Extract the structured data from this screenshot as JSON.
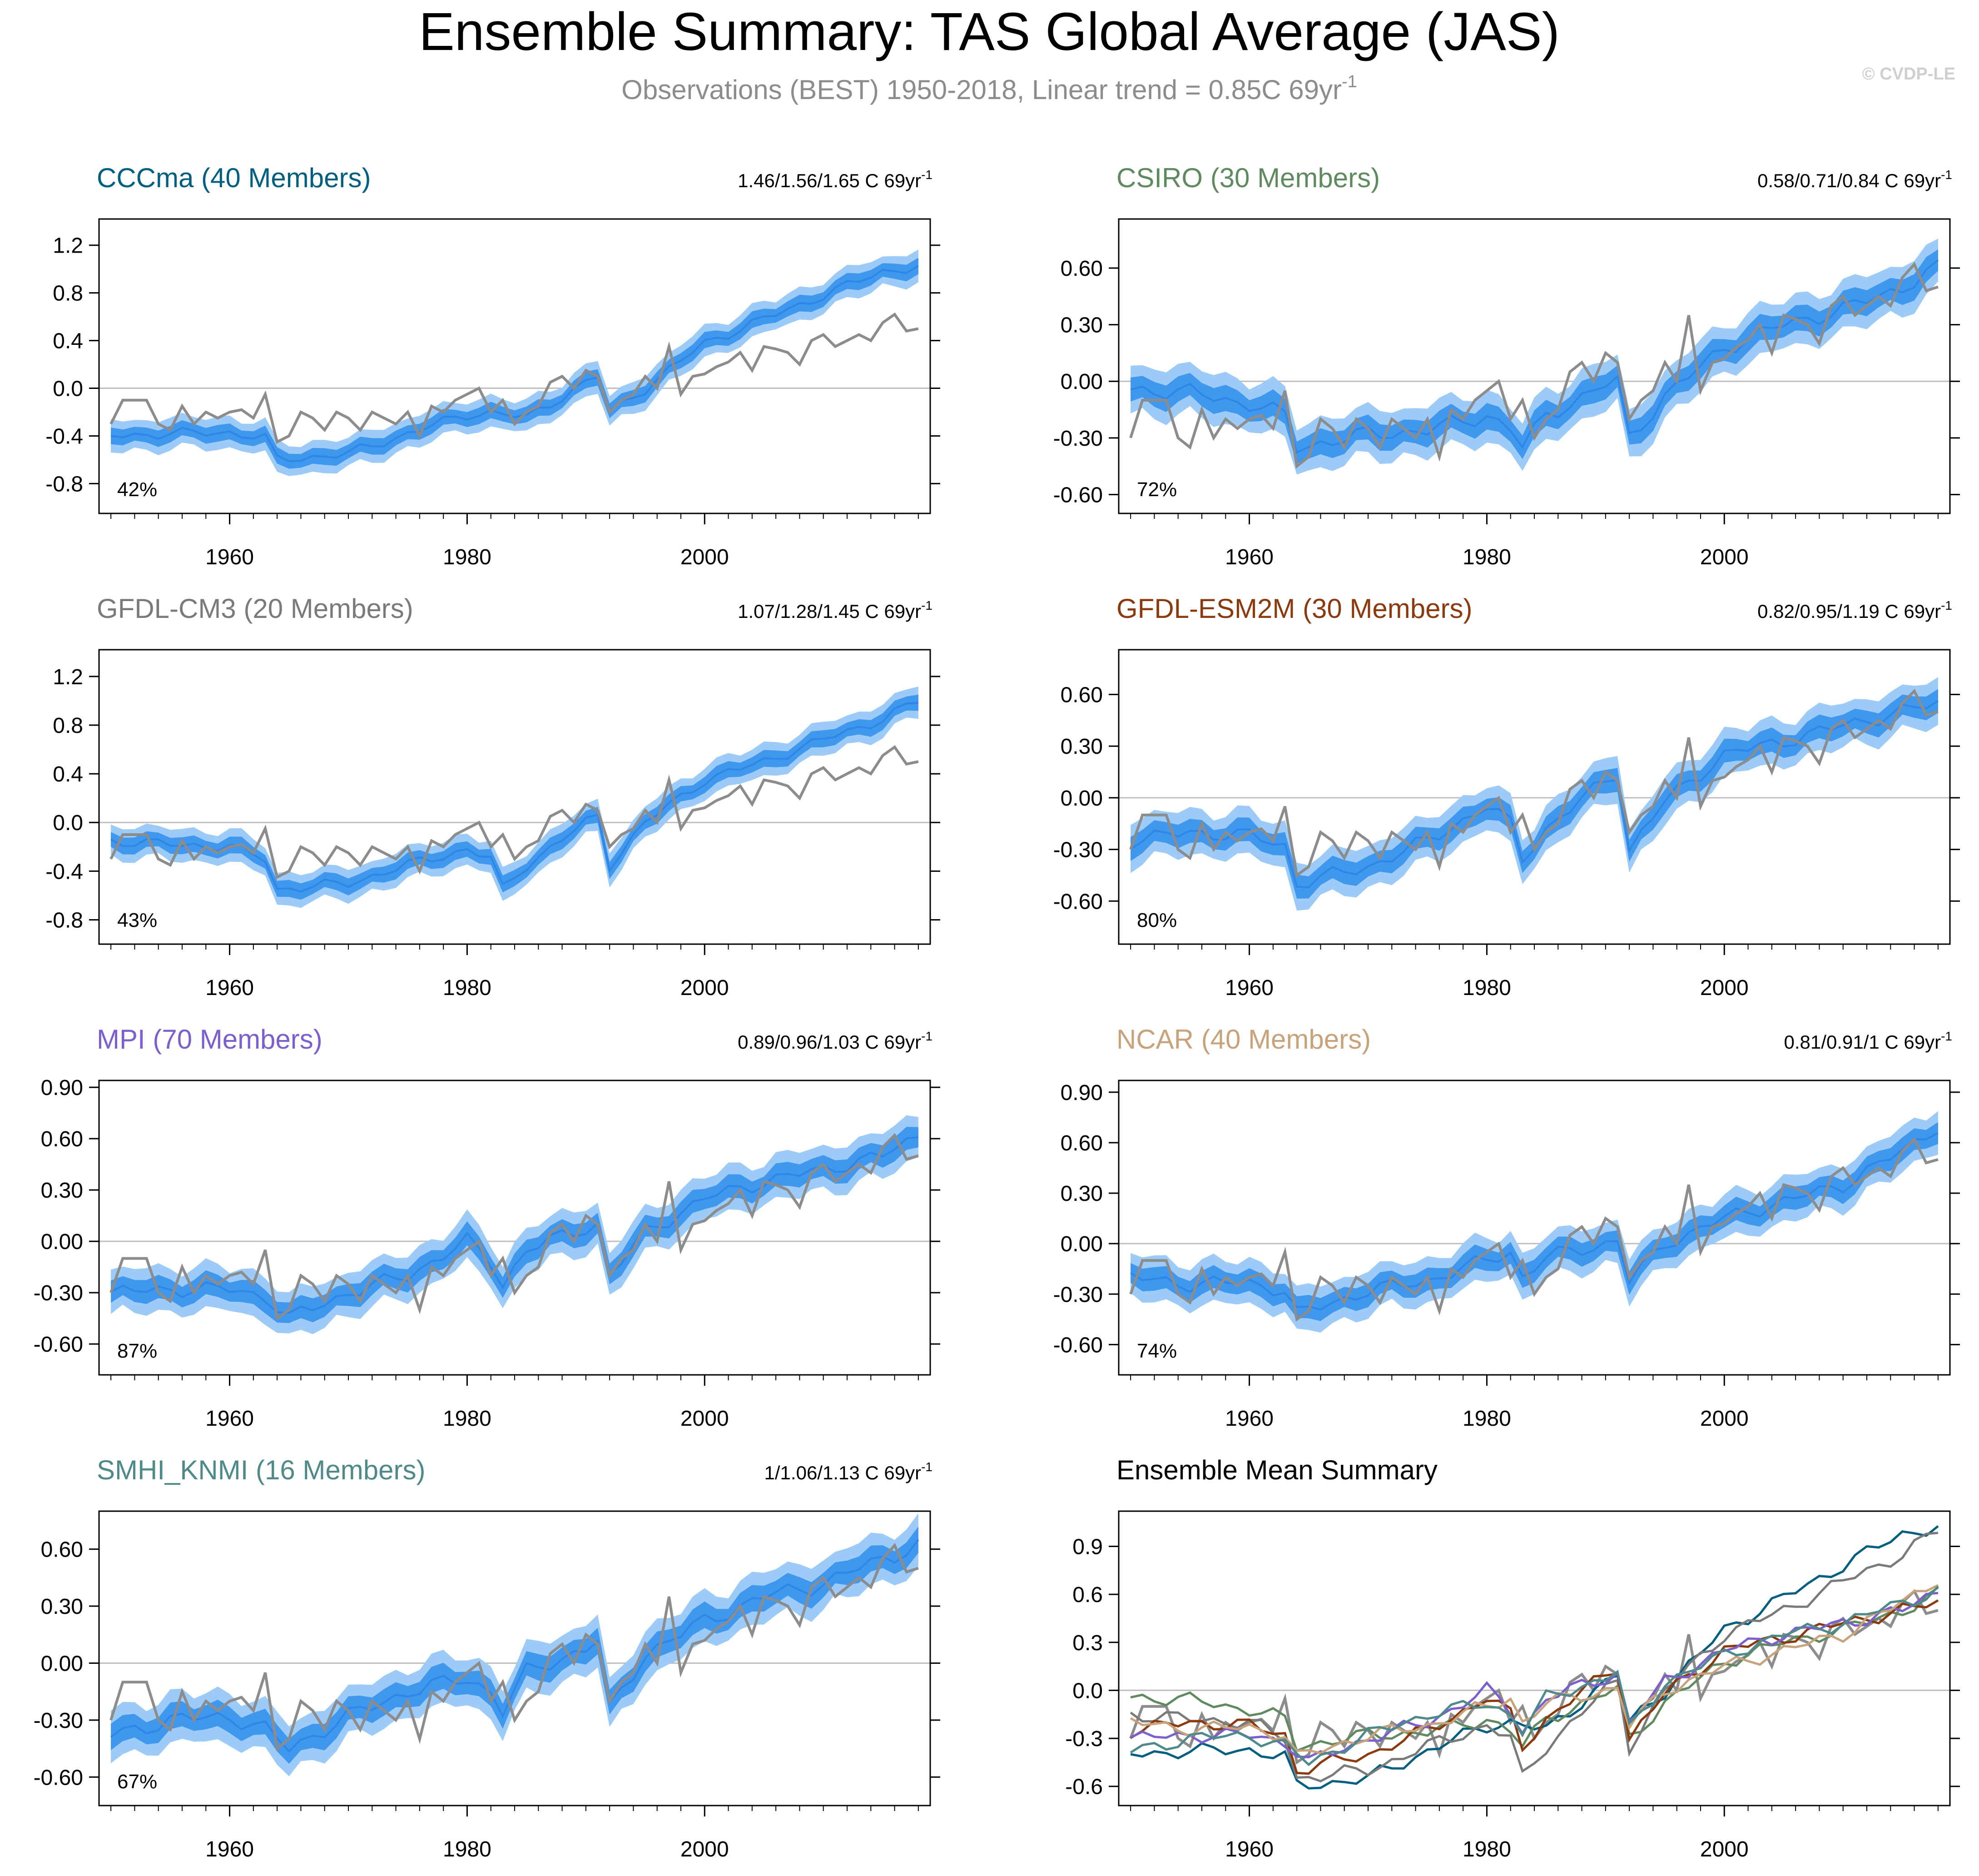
{
  "title": "Ensemble Summary: TAS Global Average (JAS)",
  "subtitle": "Observations (BEST) 1950-2018, Linear trend = 0.85C 69yr",
  "subtitle_sup": "-1",
  "watermark": "© CVDP-LE",
  "colors": {
    "band_outer": "#9ccbf7",
    "band_inner": "#3f97ee",
    "ens_mean": "#2f86e6",
    "obs": "#8c8c8c",
    "zero_line": "#bdbdbd",
    "axes": "#000000",
    "tick_label": "#000000"
  },
  "chart_data": [
    {
      "type": "area",
      "title": "CCCma (40 Members)",
      "title_color": "#005f80",
      "trend_label": "1.46/1.56/1.65 C 69yr",
      "trend_sup": "-1",
      "pct_label": "42%",
      "xlim": [
        1949,
        2019
      ],
      "ylim": [
        -1.05,
        1.42
      ],
      "yticks": [
        -0.8,
        -0.4,
        0.0,
        0.4,
        0.8,
        1.2
      ],
      "ytick_labels": [
        "-0.8",
        "-0.4",
        "0.0",
        "0.4",
        "0.8",
        "1.2"
      ],
      "xticks": [
        1960,
        1980,
        2000
      ],
      "xtick_labels": [
        "1960",
        "1980",
        "2000"
      ],
      "years": [
        1950,
        2018
      ],
      "trend": [
        1.56,
        1.46,
        1.65
      ],
      "pct": 42,
      "anchors": {
        "x": [
          1950,
          1955,
          1960,
          1963,
          1964,
          1970,
          1975,
          1980,
          1982,
          1985,
          1990,
          1991,
          1992,
          1995,
          2000,
          2005,
          2010,
          2015,
          2018
        ],
        "y": [
          -0.4,
          -0.38,
          -0.37,
          -0.42,
          -0.6,
          -0.55,
          -0.38,
          -0.22,
          -0.2,
          -0.25,
          0.05,
          0.1,
          -0.2,
          0.0,
          0.38,
          0.58,
          0.78,
          0.98,
          1.02
        ]
      }
    },
    {
      "type": "area",
      "title": "CSIRO (30 Members)",
      "title_color": "#5f8a5f",
      "trend_label": "0.58/0.71/0.84 C 69yr",
      "trend_sup": "-1",
      "pct_label": "72%",
      "xlim": [
        1949,
        2019
      ],
      "ylim": [
        -0.7,
        0.86
      ],
      "yticks": [
        -0.6,
        -0.3,
        0.0,
        0.3,
        0.6
      ],
      "ytick_labels": [
        "-0.60",
        "-0.30",
        "0.00",
        "0.30",
        "0.60"
      ],
      "xticks": [
        1960,
        1980,
        2000
      ],
      "xtick_labels": [
        "1960",
        "1980",
        "2000"
      ],
      "years": [
        1950,
        2018
      ],
      "trend": [
        0.71,
        0.58,
        0.84
      ],
      "pct": 72,
      "anchors": {
        "x": [
          1950,
          1955,
          1960,
          1963,
          1964,
          1970,
          1975,
          1980,
          1982,
          1983,
          1985,
          1990,
          1991,
          1992,
          1995,
          2000,
          2005,
          2010,
          2015,
          2018
        ],
        "y": [
          -0.04,
          -0.06,
          -0.12,
          -0.18,
          -0.35,
          -0.28,
          -0.26,
          -0.18,
          -0.25,
          -0.35,
          -0.18,
          -0.02,
          0.0,
          -0.3,
          -0.08,
          0.18,
          0.3,
          0.38,
          0.5,
          0.6
        ]
      }
    },
    {
      "type": "area",
      "title": "GFDL-CM3 (20 Members)",
      "title_color": "#7a7a7a",
      "trend_label": "1.07/1.28/1.45 C 69yr",
      "trend_sup": "-1",
      "pct_label": "43%",
      "xlim": [
        1949,
        2019
      ],
      "ylim": [
        -1.0,
        1.42
      ],
      "yticks": [
        -0.8,
        -0.4,
        0.0,
        0.4,
        0.8,
        1.2
      ],
      "ytick_labels": [
        "-0.8",
        "-0.4",
        "0.0",
        "0.4",
        "0.8",
        "1.2"
      ],
      "xticks": [
        1960,
        1980,
        2000
      ],
      "xtick_labels": [
        "1960",
        "1980",
        "2000"
      ],
      "years": [
        1950,
        2018
      ],
      "trend": [
        1.28,
        1.07,
        1.45
      ],
      "pct": 43,
      "anchors": {
        "x": [
          1950,
          1955,
          1960,
          1963,
          1964,
          1970,
          1975,
          1980,
          1982,
          1983,
          1985,
          1990,
          1991,
          1992,
          1995,
          2000,
          2005,
          2010,
          2015,
          2018
        ],
        "y": [
          -0.15,
          -0.18,
          -0.2,
          -0.3,
          -0.55,
          -0.5,
          -0.35,
          -0.22,
          -0.3,
          -0.55,
          -0.35,
          0.0,
          0.05,
          -0.35,
          0.0,
          0.35,
          0.5,
          0.68,
          0.85,
          1.0
        ]
      }
    },
    {
      "type": "area",
      "title": "GFDL-ESM2M (30 Members)",
      "title_color": "#8b3a0e",
      "trend_label": "0.82/0.95/1.19 C 69yr",
      "trend_sup": "-1",
      "pct_label": "80%",
      "xlim": [
        1949,
        2019
      ],
      "ylim": [
        -0.85,
        0.86
      ],
      "yticks": [
        -0.6,
        -0.3,
        0.0,
        0.3,
        0.6
      ],
      "ytick_labels": [
        "-0.60",
        "-0.30",
        "0.00",
        "0.30",
        "0.60"
      ],
      "xticks": [
        1960,
        1980,
        2000
      ],
      "xtick_labels": [
        "1960",
        "1980",
        "2000"
      ],
      "years": [
        1950,
        2018
      ],
      "trend": [
        0.95,
        0.82,
        1.19
      ],
      "pct": 80,
      "anchors": {
        "x": [
          1950,
          1955,
          1960,
          1963,
          1964,
          1970,
          1975,
          1980,
          1982,
          1983,
          1985,
          1990,
          1991,
          1992,
          1995,
          2000,
          2005,
          2010,
          2015,
          2018
        ],
        "y": [
          -0.25,
          -0.2,
          -0.22,
          -0.28,
          -0.5,
          -0.4,
          -0.25,
          -0.05,
          -0.15,
          -0.35,
          -0.18,
          0.1,
          0.15,
          -0.3,
          -0.02,
          0.25,
          0.33,
          0.42,
          0.5,
          0.55
        ]
      }
    },
    {
      "type": "area",
      "title": "MPI (70 Members)",
      "title_color": "#7b5fcf",
      "trend_label": "0.89/0.96/1.03 C 69yr",
      "trend_sup": "-1",
      "pct_label": "87%",
      "xlim": [
        1949,
        2019
      ],
      "ylim": [
        -0.78,
        0.94
      ],
      "yticks": [
        -0.6,
        -0.3,
        0.0,
        0.3,
        0.6,
        0.9
      ],
      "ytick_labels": [
        "-0.60",
        "-0.30",
        "0.00",
        "0.30",
        "0.60",
        "0.90"
      ],
      "xticks": [
        1960,
        1980,
        2000
      ],
      "xtick_labels": [
        "1960",
        "1980",
        "2000"
      ],
      "years": [
        1950,
        2018
      ],
      "trend": [
        0.96,
        0.89,
        1.03
      ],
      "pct": 87,
      "anchors": {
        "x": [
          1950,
          1955,
          1960,
          1963,
          1965,
          1970,
          1975,
          1980,
          1982,
          1983,
          1985,
          1990,
          1991,
          1992,
          1995,
          2000,
          2005,
          2010,
          2015,
          2018
        ],
        "y": [
          -0.3,
          -0.28,
          -0.28,
          -0.32,
          -0.45,
          -0.3,
          -0.2,
          0.0,
          -0.12,
          -0.25,
          -0.05,
          0.08,
          0.1,
          -0.2,
          0.05,
          0.25,
          0.35,
          0.42,
          0.5,
          0.62
        ]
      }
    },
    {
      "type": "area",
      "title": "NCAR (40 Members)",
      "title_color": "#c8a27a",
      "trend_label": "0.81/0.91/1 C 69yr",
      "trend_sup": "-1",
      "pct_label": "74%",
      "xlim": [
        1949,
        2019
      ],
      "ylim": [
        -0.78,
        0.97
      ],
      "yticks": [
        -0.6,
        -0.3,
        0.0,
        0.3,
        0.6,
        0.9
      ],
      "ytick_labels": [
        "-0.60",
        "-0.30",
        "0.00",
        "0.30",
        "0.60",
        "0.90"
      ],
      "xticks": [
        1960,
        1980,
        2000
      ],
      "xtick_labels": [
        "1960",
        "1980",
        "2000"
      ],
      "years": [
        1950,
        2018
      ],
      "trend": [
        0.91,
        0.81,
        1.0
      ],
      "pct": 74,
      "anchors": {
        "x": [
          1950,
          1955,
          1960,
          1963,
          1964,
          1970,
          1975,
          1980,
          1982,
          1983,
          1985,
          1990,
          1991,
          1992,
          1995,
          2000,
          2005,
          2010,
          2015,
          2018
        ],
        "y": [
          -0.2,
          -0.24,
          -0.23,
          -0.28,
          -0.42,
          -0.28,
          -0.22,
          -0.1,
          -0.05,
          -0.2,
          -0.08,
          0.0,
          0.02,
          -0.22,
          0.0,
          0.15,
          0.25,
          0.35,
          0.55,
          0.7
        ]
      }
    },
    {
      "type": "area",
      "title": "SMHI_KNMI (16 Members)",
      "title_color": "#4e8a8a",
      "trend_label": "1/1.06/1.13 C 69yr",
      "trend_sup": "-1",
      "pct_label": "67%",
      "xlim": [
        1949,
        2019
      ],
      "ylim": [
        -0.75,
        0.8
      ],
      "yticks": [
        -0.6,
        -0.3,
        0.0,
        0.3,
        0.6
      ],
      "ytick_labels": [
        "-0.60",
        "-0.30",
        "0.00",
        "0.30",
        "0.60"
      ],
      "xticks": [
        1960,
        1980,
        2000
      ],
      "xtick_labels": [
        "1960",
        "1980",
        "2000"
      ],
      "years": [
        1950,
        2018
      ],
      "trend": [
        1.06,
        1.0,
        1.13
      ],
      "pct": 67,
      "anchors": {
        "x": [
          1950,
          1955,
          1960,
          1963,
          1965,
          1970,
          1975,
          1980,
          1982,
          1983,
          1985,
          1990,
          1991,
          1992,
          1995,
          2000,
          2005,
          2010,
          2015,
          2018
        ],
        "y": [
          -0.38,
          -0.3,
          -0.28,
          -0.35,
          -0.45,
          -0.28,
          -0.15,
          -0.08,
          -0.15,
          -0.25,
          -0.05,
          0.08,
          0.12,
          -0.25,
          0.05,
          0.22,
          0.35,
          0.42,
          0.55,
          0.62
        ]
      }
    },
    {
      "type": "line",
      "title": "Ensemble Mean Summary",
      "title_color": "#000000",
      "xlim": [
        1949,
        2019
      ],
      "ylim": [
        -0.72,
        1.12
      ],
      "yticks": [
        -0.6,
        -0.3,
        0.0,
        0.3,
        0.6,
        0.9
      ],
      "ytick_labels": [
        "-0.6",
        "-0.3",
        "0.0",
        "0.3",
        "0.6",
        "0.9"
      ],
      "xticks": [
        1960,
        1980,
        2000
      ],
      "xtick_labels": [
        "1960",
        "1980",
        "2000"
      ],
      "years": [
        1950,
        2018
      ],
      "series_refs": [
        0,
        1,
        2,
        3,
        4,
        5,
        6
      ]
    }
  ],
  "obs_anchors": {
    "x": [
      1950,
      1951,
      1952,
      1953,
      1954,
      1955,
      1956,
      1957,
      1958,
      1959,
      1960,
      1961,
      1962,
      1963,
      1964,
      1965,
      1966,
      1967,
      1968,
      1969,
      1970,
      1971,
      1972,
      1973,
      1974,
      1975,
      1976,
      1977,
      1978,
      1979,
      1980,
      1981,
      1982,
      1983,
      1984,
      1985,
      1986,
      1987,
      1988,
      1989,
      1990,
      1991,
      1992,
      1993,
      1994,
      1995,
      1996,
      1997,
      1998,
      1999,
      2000,
      2001,
      2002,
      2003,
      2004,
      2005,
      2006,
      2007,
      2008,
      2009,
      2010,
      2011,
      2012,
      2013,
      2014,
      2015,
      2016,
      2017,
      2018
    ],
    "y": [
      -0.3,
      -0.1,
      -0.1,
      -0.1,
      -0.3,
      -0.35,
      -0.15,
      -0.3,
      -0.2,
      -0.25,
      -0.2,
      -0.18,
      -0.25,
      -0.05,
      -0.45,
      -0.4,
      -0.2,
      -0.25,
      -0.35,
      -0.2,
      -0.25,
      -0.35,
      -0.2,
      -0.25,
      -0.3,
      -0.2,
      -0.4,
      -0.15,
      -0.2,
      -0.1,
      -0.05,
      0.0,
      -0.2,
      -0.1,
      -0.3,
      -0.2,
      -0.15,
      0.05,
      0.1,
      0.0,
      0.15,
      0.1,
      -0.2,
      -0.1,
      -0.05,
      0.1,
      0.0,
      0.35,
      -0.05,
      0.1,
      0.12,
      0.18,
      0.22,
      0.3,
      0.15,
      0.35,
      0.33,
      0.3,
      0.2,
      0.4,
      0.45,
      0.35,
      0.4,
      0.45,
      0.4,
      0.55,
      0.62,
      0.48,
      0.5
    ]
  }
}
